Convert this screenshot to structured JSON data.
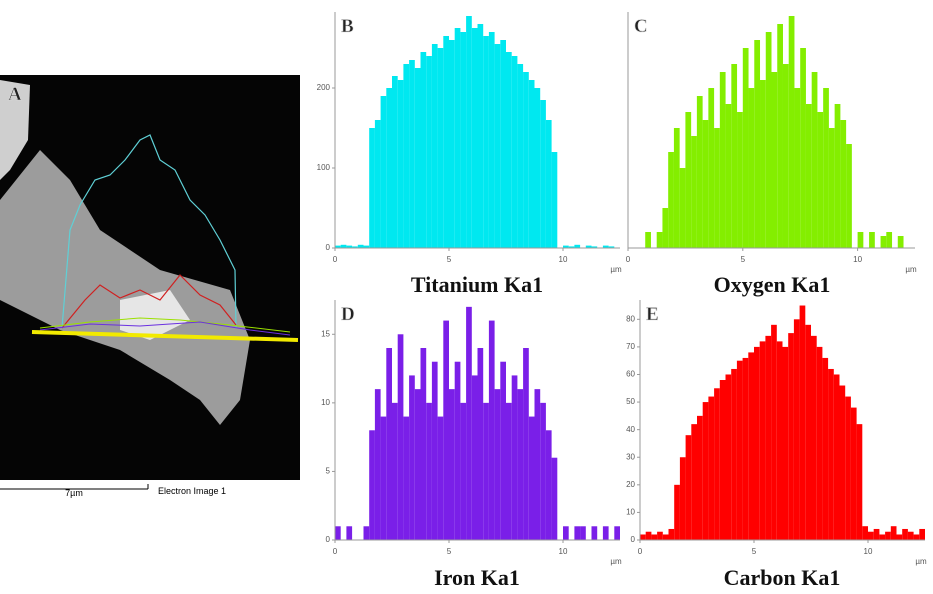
{
  "image_panel": {
    "label": "A",
    "scale_bar": "7µm",
    "caption": "Electron Image 1"
  },
  "chart_data": [
    {
      "type": "bar",
      "panel": "B",
      "title": "Titanium Ka1",
      "x_unit": "µm",
      "color": "#00e8f0",
      "x": [
        0,
        0.25,
        0.5,
        0.75,
        1,
        1.25,
        1.5,
        1.75,
        2,
        2.25,
        2.5,
        2.75,
        3,
        3.25,
        3.5,
        3.75,
        4,
        4.25,
        4.5,
        4.75,
        5,
        5.25,
        5.5,
        5.75,
        6,
        6.25,
        6.5,
        6.75,
        7,
        7.25,
        7.5,
        7.75,
        8,
        8.25,
        8.5,
        8.75,
        9,
        9.25,
        9.5,
        9.75,
        10,
        10.25,
        10.5,
        10.75,
        11,
        11.25,
        11.5,
        11.75,
        12,
        12.25
      ],
      "values": [
        3,
        4,
        3,
        2,
        4,
        3,
        150,
        160,
        190,
        200,
        215,
        210,
        230,
        235,
        225,
        245,
        240,
        255,
        250,
        265,
        260,
        275,
        270,
        290,
        275,
        280,
        265,
        270,
        255,
        260,
        245,
        240,
        230,
        220,
        210,
        200,
        185,
        160,
        120,
        0,
        3,
        2,
        4,
        0,
        3,
        2,
        0,
        3,
        2,
        0
      ],
      "xlim": [
        0,
        12.5
      ],
      "xticks": [
        0,
        5,
        10
      ],
      "ylim": [
        0,
        295
      ],
      "yticks": [
        0,
        100,
        200
      ]
    },
    {
      "type": "bar",
      "panel": "C",
      "title": "Oxygen Ka1",
      "x_unit": "µm",
      "color": "#84ee00",
      "x": [
        0,
        0.25,
        0.5,
        0.75,
        1,
        1.25,
        1.5,
        1.75,
        2,
        2.25,
        2.5,
        2.75,
        3,
        3.25,
        3.5,
        3.75,
        4,
        4.25,
        4.5,
        4.75,
        5,
        5.25,
        5.5,
        5.75,
        6,
        6.25,
        6.5,
        6.75,
        7,
        7.25,
        7.5,
        7.75,
        8,
        8.25,
        8.5,
        8.75,
        9,
        9.25,
        9.5,
        9.75,
        10,
        10.25,
        10.5,
        10.75,
        11,
        11.25,
        11.5,
        11.75,
        12,
        12.25
      ],
      "values": [
        0,
        0,
        0,
        20,
        0,
        20,
        50,
        120,
        150,
        100,
        170,
        140,
        190,
        160,
        200,
        150,
        220,
        180,
        230,
        170,
        250,
        200,
        260,
        210,
        270,
        220,
        280,
        230,
        290,
        200,
        250,
        180,
        220,
        170,
        200,
        150,
        180,
        160,
        130,
        0,
        20,
        0,
        20,
        0,
        15,
        20,
        0,
        15,
        0,
        0
      ],
      "xlim": [
        0,
        12.5
      ],
      "xticks": [
        0,
        5,
        10
      ],
      "ylim": [
        0,
        295
      ]
    },
    {
      "type": "bar",
      "panel": "D",
      "title": "Iron Ka1",
      "x_unit": "µm",
      "color": "#7a1fe8",
      "x": [
        0,
        0.25,
        0.5,
        0.75,
        1,
        1.25,
        1.5,
        1.75,
        2,
        2.25,
        2.5,
        2.75,
        3,
        3.25,
        3.5,
        3.75,
        4,
        4.25,
        4.5,
        4.75,
        5,
        5.25,
        5.5,
        5.75,
        6,
        6.25,
        6.5,
        6.75,
        7,
        7.25,
        7.5,
        7.75,
        8,
        8.25,
        8.5,
        8.75,
        9,
        9.25,
        9.5,
        9.75,
        10,
        10.25,
        10.5,
        10.75,
        11,
        11.25,
        11.5,
        11.75,
        12,
        12.25
      ],
      "values": [
        1,
        0,
        1,
        0,
        0,
        1,
        8,
        11,
        9,
        14,
        10,
        15,
        9,
        12,
        11,
        14,
        10,
        13,
        9,
        16,
        11,
        13,
        10,
        17,
        12,
        14,
        10,
        16,
        11,
        13,
        10,
        12,
        11,
        14,
        9,
        11,
        10,
        8,
        6,
        0,
        1,
        0,
        1,
        1,
        0,
        1,
        0,
        1,
        0,
        1
      ],
      "xlim": [
        0,
        12.5
      ],
      "xticks": [
        0,
        5,
        10
      ],
      "ylim": [
        0,
        17.5
      ],
      "yticks": [
        0,
        5,
        10,
        15
      ]
    },
    {
      "type": "bar",
      "panel": "E",
      "title": "Carbon Ka1",
      "x_unit": "µm",
      "color": "#ff0000",
      "x": [
        0,
        0.25,
        0.5,
        0.75,
        1,
        1.25,
        1.5,
        1.75,
        2,
        2.25,
        2.5,
        2.75,
        3,
        3.25,
        3.5,
        3.75,
        4,
        4.25,
        4.5,
        4.75,
        5,
        5.25,
        5.5,
        5.75,
        6,
        6.25,
        6.5,
        6.75,
        7,
        7.25,
        7.5,
        7.75,
        8,
        8.25,
        8.5,
        8.75,
        9,
        9.25,
        9.5,
        9.75,
        10,
        10.25,
        10.5,
        10.75,
        11,
        11.25,
        11.5,
        11.75,
        12,
        12.25
      ],
      "values": [
        2,
        3,
        2,
        3,
        2,
        4,
        20,
        30,
        38,
        42,
        45,
        50,
        52,
        55,
        58,
        60,
        62,
        65,
        66,
        68,
        70,
        72,
        74,
        78,
        72,
        70,
        75,
        80,
        85,
        78,
        74,
        70,
        66,
        62,
        60,
        56,
        52,
        48,
        42,
        5,
        3,
        4,
        2,
        3,
        5,
        2,
        4,
        3,
        2,
        4
      ],
      "xlim": [
        0,
        12.5
      ],
      "xticks": [
        0,
        5,
        10
      ],
      "ylim": [
        0,
        87
      ],
      "yticks": [
        0,
        10,
        20,
        30,
        40,
        50,
        60,
        70,
        80
      ]
    }
  ]
}
